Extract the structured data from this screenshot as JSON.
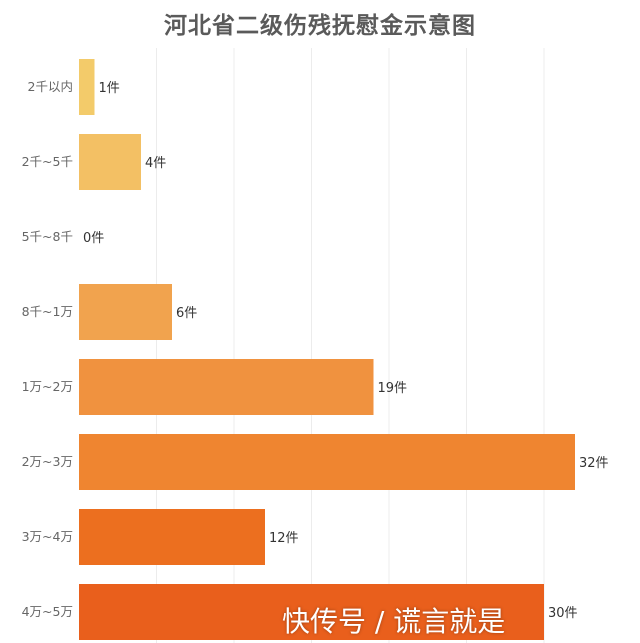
{
  "chart_data": {
    "type": "bar",
    "orientation": "horizontal",
    "title": "河北省二级伤残抚慰金示意图",
    "xlabel": "",
    "ylabel": "",
    "categories": [
      "2千以内",
      "2千~5千",
      "5千~8千",
      "8千~1万",
      "1万~2万",
      "2万~3万",
      "3万~4万",
      "4万~5万"
    ],
    "values": [
      1,
      4,
      0,
      6,
      19,
      32,
      12,
      30
    ],
    "value_labels": [
      "1件",
      "4件",
      "0件",
      "6件",
      "19件",
      "32件",
      "12件",
      "30件"
    ],
    "xlim": [
      0,
      35
    ],
    "grid": true,
    "legend": "none",
    "colors": [
      "#f3cb6a",
      "#f3c064",
      "#f1b65d",
      "#f1a34e",
      "#f0923f",
      "#ef8530",
      "#ec6f1f",
      "#e95f1c"
    ]
  },
  "watermark": "快传号 / 谎言就是"
}
